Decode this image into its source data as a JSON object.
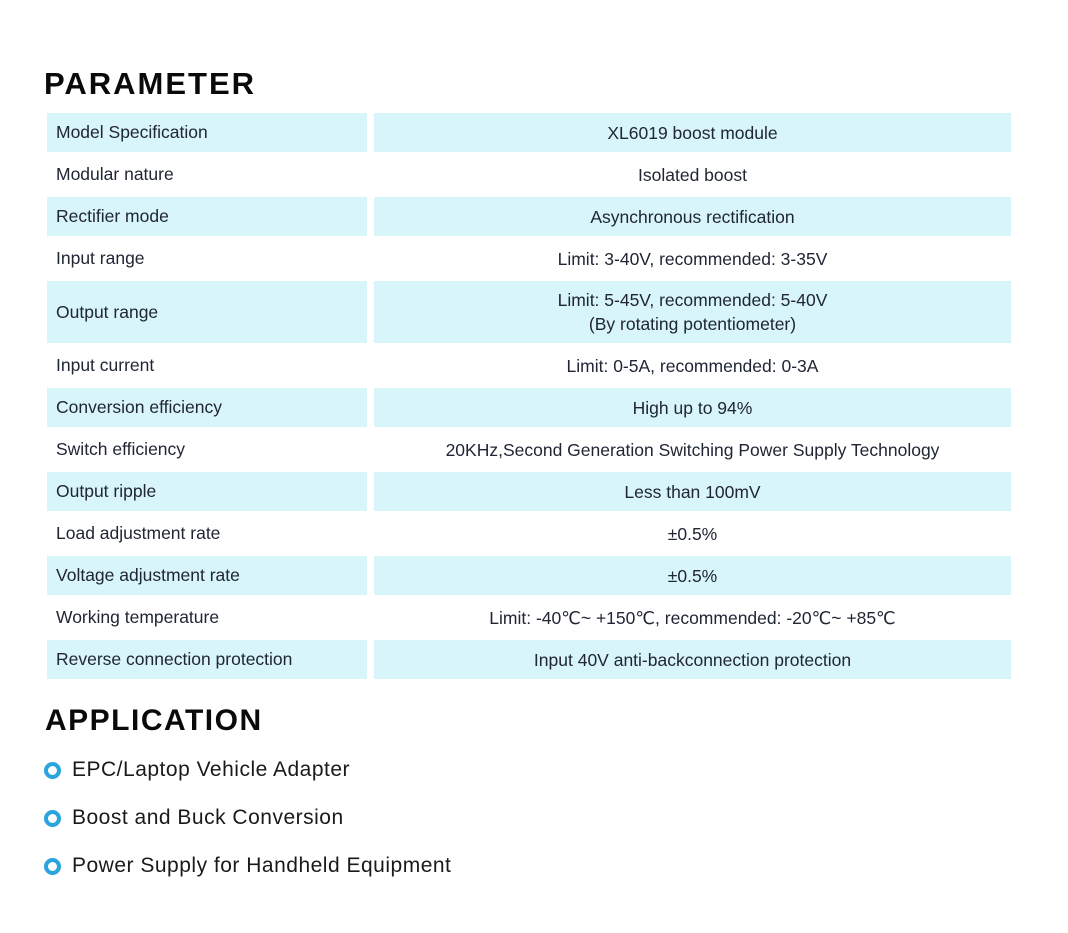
{
  "parameter_section": {
    "title": "PARAMETER",
    "table": {
      "row_highlight_color": "#d8f5f9",
      "text_color": "#202634",
      "rows": [
        {
          "label": "Model Specification",
          "value": "XL6019 boost module",
          "highlighted": true
        },
        {
          "label": "Modular nature",
          "value": "Isolated boost",
          "highlighted": false
        },
        {
          "label": "Rectifier mode",
          "value": "Asynchronous rectification",
          "highlighted": true
        },
        {
          "label": "Input range",
          "value": "Limit: 3-40V, recommended: 3-35V",
          "highlighted": false
        },
        {
          "label": "Output range",
          "value": "Limit: 5-45V, recommended: 5-40V",
          "value_line2": "(By rotating potentiometer)",
          "highlighted": true
        },
        {
          "label": "Input current",
          "value": "Limit: 0-5A, recommended: 0-3A",
          "highlighted": false
        },
        {
          "label": "Conversion efficiency",
          "value": "High up to 94%",
          "highlighted": true
        },
        {
          "label": "Switch efficiency",
          "value": "20KHz,Second Generation Switching Power Supply Technology",
          "highlighted": false
        },
        {
          "label": "Output ripple",
          "value": "Less than 100mV",
          "highlighted": true
        },
        {
          "label": "Load adjustment rate",
          "value": "±0.5%",
          "highlighted": false
        },
        {
          "label": "Voltage adjustment rate",
          "value": "±0.5%",
          "highlighted": true
        },
        {
          "label": "Working temperature",
          "value": "Limit: -40℃~ +150℃, recommended: -20℃~ +85℃",
          "highlighted": false
        },
        {
          "label": "Reverse connection protection",
          "value": "Input 40V anti-backconnection protection",
          "highlighted": true
        }
      ]
    }
  },
  "application_section": {
    "title": "APPLICATION",
    "bullet_color": "#2ba4de",
    "items": [
      "EPC/Laptop Vehicle Adapter",
      "Boost and Buck Conversion",
      "Power Supply for Handheld Equipment"
    ]
  }
}
